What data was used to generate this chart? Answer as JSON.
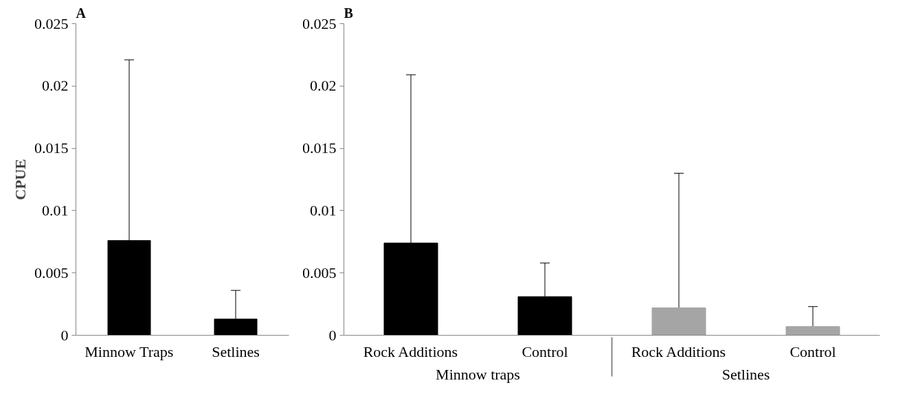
{
  "chart_data": [
    {
      "type": "bar",
      "title": "A",
      "ylabel": "CPUE",
      "categories": [
        "Minnow Traps",
        "Setlines"
      ],
      "values": [
        0.0076,
        0.0013
      ],
      "colors": [
        "#000000",
        "#000000"
      ],
      "errors": [
        [
          0.0076,
          0.0221
        ],
        [
          0.0013,
          0.0036
        ]
      ],
      "ylim": [
        0,
        0.025
      ],
      "yticks": [
        0,
        0.005,
        0.01,
        0.015,
        0.02,
        0.025
      ],
      "grid": false
    },
    {
      "type": "bar",
      "title": "B",
      "categories": [
        "Rock Additions",
        "Control",
        "Rock Additions",
        "Control"
      ],
      "values": [
        0.0074,
        0.0031,
        0.0022,
        0.0007
      ],
      "colors": [
        "#000000",
        "#000000",
        "#a5a5a5",
        "#a5a5a5"
      ],
      "errors": [
        [
          0.0074,
          0.0209
        ],
        [
          0.0031,
          0.0058
        ],
        [
          0.0022,
          0.013
        ],
        [
          0.0007,
          0.0023
        ]
      ],
      "annotations": [
        "Minnow traps",
        "Setlines"
      ],
      "ylim": [
        0,
        0.025
      ],
      "yticks": [
        0,
        0.005,
        0.01,
        0.015,
        0.02,
        0.025
      ],
      "grid": false
    }
  ]
}
